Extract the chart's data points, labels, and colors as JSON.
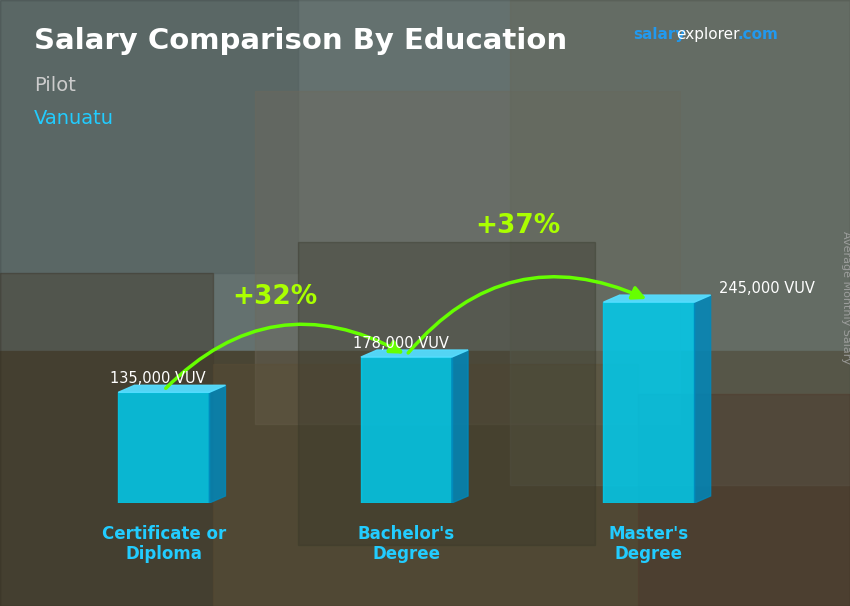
{
  "title": "Salary Comparison By Education",
  "subtitle": "Pilot",
  "location": "Vanuatu",
  "watermark_salary": "salary",
  "watermark_explorer": "explorer",
  "watermark_com": ".com",
  "ylabel_rotated": "Average Monthly Salary",
  "categories": [
    "Certificate or\nDiploma",
    "Bachelor's\nDegree",
    "Master's\nDegree"
  ],
  "values": [
    135000,
    178000,
    245000
  ],
  "value_labels": [
    "135,000 VUV",
    "178,000 VUV",
    "245,000 VUV"
  ],
  "pct_labels": [
    "+32%",
    "+37%"
  ],
  "bar_color_front": "#00CCEE",
  "bar_color_top": "#55DDFF",
  "bar_color_side": "#0088BB",
  "bar_alpha": 0.85,
  "arrow_color": "#66FF00",
  "pct_color": "#AAFF00",
  "title_color": "#FFFFFF",
  "subtitle_color": "#CCCCCC",
  "location_color": "#22CCFF",
  "value_label_color": "#FFFFFF",
  "bg_top_color": "#7a8880",
  "bg_bottom_color": "#5a6055",
  "figsize": [
    8.5,
    6.06
  ],
  "dpi": 100
}
